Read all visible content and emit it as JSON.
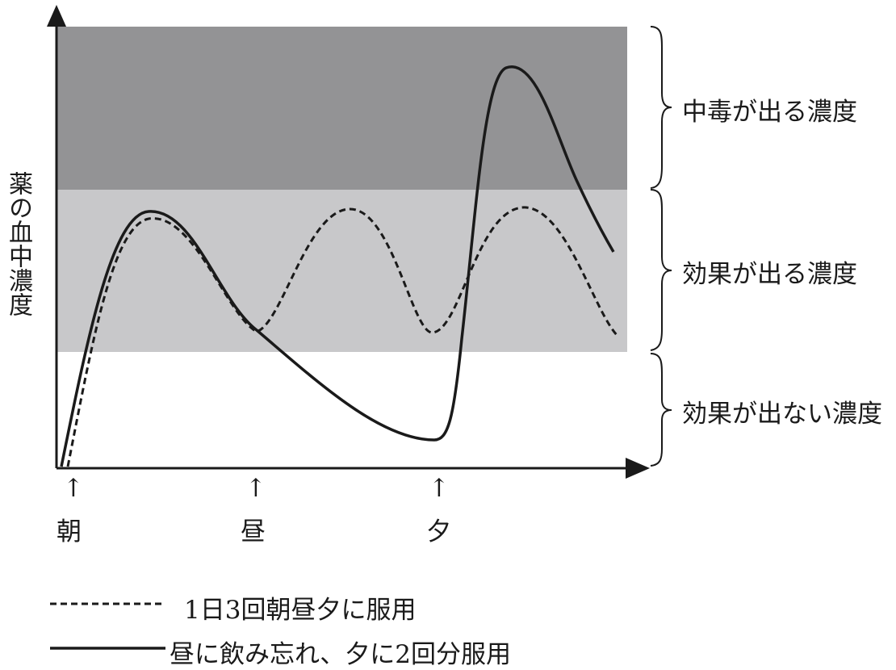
{
  "diagram": {
    "y_axis_label": "薬の血中濃度",
    "zones": [
      {
        "id": "toxic",
        "label": "中毒が出る濃度",
        "color": "#939395"
      },
      {
        "id": "effective",
        "label": "効果が出る濃度",
        "color": "#c8c8ca"
      },
      {
        "id": "ineffective",
        "label": "効果が出ない濃度",
        "color": "#ffffff"
      }
    ],
    "dose_times": [
      {
        "arrow": "↑",
        "label": "朝"
      },
      {
        "arrow": "↑",
        "label": "昼"
      },
      {
        "arrow": "↑",
        "label": "夕"
      }
    ],
    "legend": [
      {
        "style": "dashed",
        "label": "1日3回朝昼夕に服用"
      },
      {
        "style": "solid",
        "label": "昼に飲み忘れ、夕に2回分服用"
      }
    ]
  }
}
